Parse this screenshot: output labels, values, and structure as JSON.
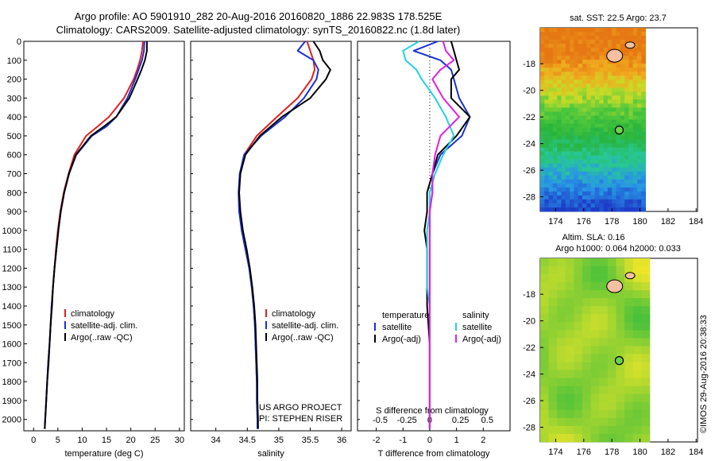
{
  "header": {
    "line1": "Argo profile: AO 5901910_282 20-Aug-2016 20160820_1886 22.983S 178.525E",
    "line2": "Climatology: CARS2009. Satellite-adjusted climatology: synTS_20160822.nc (1.8d later)"
  },
  "stamp": "©IMOS 29-Aug-2016 20:38:33",
  "colors": {
    "climatology": "#e02020",
    "satellite": "#1a2fd6",
    "argo": "#000000",
    "cyan": "#22d3e0",
    "magenta": "#e020e0"
  },
  "chart_data": [
    {
      "type": "line",
      "id": "temperature",
      "xlabel": "temperature (deg C)",
      "ylabel": "",
      "xlim": [
        -2,
        31
      ],
      "ylim": [
        2060,
        0
      ],
      "xticks": [
        0,
        5,
        10,
        15,
        20,
        25,
        30
      ],
      "yticks": [
        0,
        100,
        200,
        300,
        400,
        500,
        600,
        700,
        800,
        900,
        1000,
        1100,
        1200,
        1300,
        1400,
        1500,
        1600,
        1700,
        1800,
        1900,
        2000
      ],
      "legend": [
        "climatology",
        "satellite-adj. clim.",
        "Argo(..raw -QC)"
      ],
      "depth": [
        0,
        50,
        100,
        150,
        200,
        300,
        400,
        450,
        500,
        600,
        700,
        800,
        900,
        1000,
        1100,
        1200,
        1300,
        1400,
        1500,
        1600,
        1700,
        1800,
        1900,
        2000,
        2050
      ],
      "series": [
        {
          "name": "climatology",
          "color_key": "climatology",
          "values": [
            22.5,
            22.3,
            21.9,
            21.3,
            20.6,
            18.6,
            15.5,
            13.2,
            10.8,
            8.4,
            7.2,
            6.2,
            5.5,
            5.0,
            4.6,
            4.3,
            4.0,
            3.7,
            3.5,
            3.3,
            3.0,
            2.8,
            2.6,
            2.4,
            2.3
          ]
        },
        {
          "name": "satellite-adj. clim.",
          "color_key": "satellite",
          "values": [
            22.8,
            22.7,
            22.3,
            21.6,
            20.9,
            19.3,
            17.0,
            15.0,
            12.0,
            8.8,
            7.3,
            6.3,
            5.6,
            5.1,
            4.7,
            4.3,
            4.0,
            3.7,
            3.5,
            3.3,
            3.0,
            2.8,
            2.6,
            2.4,
            2.3
          ]
        },
        {
          "name": "Argo(..raw -QC)",
          "color_key": "argo",
          "values": [
            23.3,
            23.3,
            22.9,
            22.2,
            21.4,
            19.7,
            17.0,
            14.5,
            11.8,
            8.7,
            7.3,
            6.3,
            5.6,
            5.1,
            4.7,
            4.3,
            4.0,
            3.8,
            3.5,
            3.3,
            3.1,
            2.8,
            2.6,
            2.4,
            2.3
          ]
        }
      ]
    },
    {
      "type": "line",
      "id": "salinity",
      "xlabel": "salinity",
      "ylabel": "",
      "xlim": [
        33.6,
        36.15
      ],
      "ylim": [
        2060,
        0
      ],
      "xticks": [
        34,
        34.5,
        35,
        35.5,
        36
      ],
      "legend": [
        "climatology",
        "satellite-adj. clim.",
        "Argo(..raw -QC)"
      ],
      "notes": [
        "US ARGO PROJECT",
        "PI: STEPHEN RISER"
      ],
      "depth": [
        0,
        50,
        100,
        150,
        200,
        300,
        400,
        500,
        600,
        700,
        800,
        900,
        1000,
        1100,
        1200,
        1300,
        1400,
        1500,
        1600,
        1700,
        1800,
        1900,
        2000,
        2050
      ],
      "series": [
        {
          "name": "climatology",
          "color_key": "climatology",
          "values": [
            35.45,
            35.5,
            35.55,
            35.57,
            35.52,
            35.3,
            34.97,
            34.65,
            34.45,
            34.38,
            34.37,
            34.38,
            34.42,
            34.48,
            34.53,
            34.57,
            34.6,
            34.62,
            34.63,
            34.64,
            34.65,
            34.66,
            34.66,
            34.67
          ]
        },
        {
          "name": "satellite-adj. clim.",
          "color_key": "satellite",
          "values": [
            35.42,
            35.3,
            35.55,
            35.63,
            35.6,
            35.4,
            35.1,
            34.72,
            34.45,
            34.38,
            34.36,
            34.37,
            34.41,
            34.47,
            34.53,
            34.57,
            34.6,
            34.62,
            34.63,
            34.64,
            34.65,
            34.65,
            34.66,
            34.66
          ]
        },
        {
          "name": "Argo(..raw -QC)",
          "color_key": "argo",
          "values": [
            35.55,
            35.65,
            35.7,
            35.82,
            35.75,
            35.5,
            35.05,
            34.7,
            34.47,
            34.39,
            34.37,
            34.39,
            34.43,
            34.49,
            34.54,
            34.58,
            34.61,
            34.63,
            34.64,
            34.65,
            34.66,
            34.66,
            34.67,
            34.67
          ]
        }
      ]
    },
    {
      "type": "line",
      "id": "difference",
      "xlabel": "T difference from climatology",
      "xlabel_top": "S difference from climatology",
      "xlim": [
        -2.7,
        3.0
      ],
      "ylim": [
        2060,
        0
      ],
      "xticks": [
        -2,
        -1,
        0,
        1,
        2
      ],
      "xticks_s": [
        "-0.5",
        "-0.25",
        "0",
        "0.25",
        "0.5"
      ],
      "legend_temp": {
        "title": "temperature",
        "items": [
          "satellite",
          "Argo(-adj)"
        ]
      },
      "legend_sal": {
        "title": "salinity",
        "items": [
          "satellite",
          "Argo(-adj)"
        ]
      },
      "depth": [
        0,
        50,
        100,
        150,
        200,
        300,
        400,
        500,
        600,
        700,
        800,
        900,
        1000,
        1100,
        1200,
        1300,
        1400,
        1600,
        1800,
        2000,
        2050
      ],
      "series": [
        {
          "name": "temperature satellite",
          "color_key": "satellite",
          "values": [
            0.3,
            -0.6,
            0.4,
            0.8,
            0.9,
            1.1,
            1.5,
            1.2,
            0.4,
            0.1,
            0.1,
            0.0,
            0.0,
            0.0,
            0.0,
            0.0,
            0.0,
            0.0,
            0.0,
            0.0,
            0.0
          ]
        },
        {
          "name": "temperature Argo(-adj)",
          "color_key": "argo",
          "values": [
            0.8,
            0.9,
            1.0,
            1.1,
            0.8,
            0.8,
            1.5,
            1.0,
            0.3,
            0.1,
            -0.1,
            -0.1,
            -0.2,
            -0.1,
            -0.1,
            -0.1,
            -0.1,
            0.0,
            0.0,
            0.0,
            0.0
          ]
        },
        {
          "name": "salinity satellite",
          "color_key": "cyan",
          "values": [
            -0.4,
            -1.0,
            -0.9,
            -0.5,
            -0.3,
            0.2,
            0.6,
            0.9,
            0.5,
            0.2,
            0.0,
            0.0,
            -0.1,
            -0.1,
            -0.1,
            -0.1,
            0.0,
            0.0,
            0.0,
            0.0,
            0.0
          ]
        },
        {
          "name": "salinity Argo(-adj)",
          "color_key": "magenta",
          "values": [
            0.5,
            0.6,
            0.9,
            0.4,
            0.1,
            0.5,
            1.1,
            0.4,
            0.2,
            0.1,
            0.1,
            0.0,
            0.0,
            0.0,
            0.0,
            0.0,
            0.0,
            0.0,
            0.0,
            0.0,
            0.0
          ]
        }
      ]
    }
  ],
  "maps": [
    {
      "id": "sst",
      "title": "sat. SST: 22.5 Argo: 23.7",
      "xticks": [
        174,
        176,
        178,
        180,
        182,
        184
      ],
      "yticks": [
        -18,
        -20,
        -22,
        -24,
        -26,
        -28
      ],
      "lon": 178.525,
      "lat": -22.983
    },
    {
      "id": "sla",
      "title": "Altim. SLA: 0.16",
      "subtitle": "Argo h1000: 0.064 h2000: 0.033",
      "xticks": [
        174,
        176,
        178,
        180,
        182,
        184
      ],
      "yticks": [
        -18,
        -20,
        -22,
        -24,
        -26,
        -28
      ],
      "lon": 178.525,
      "lat": -22.983
    }
  ]
}
